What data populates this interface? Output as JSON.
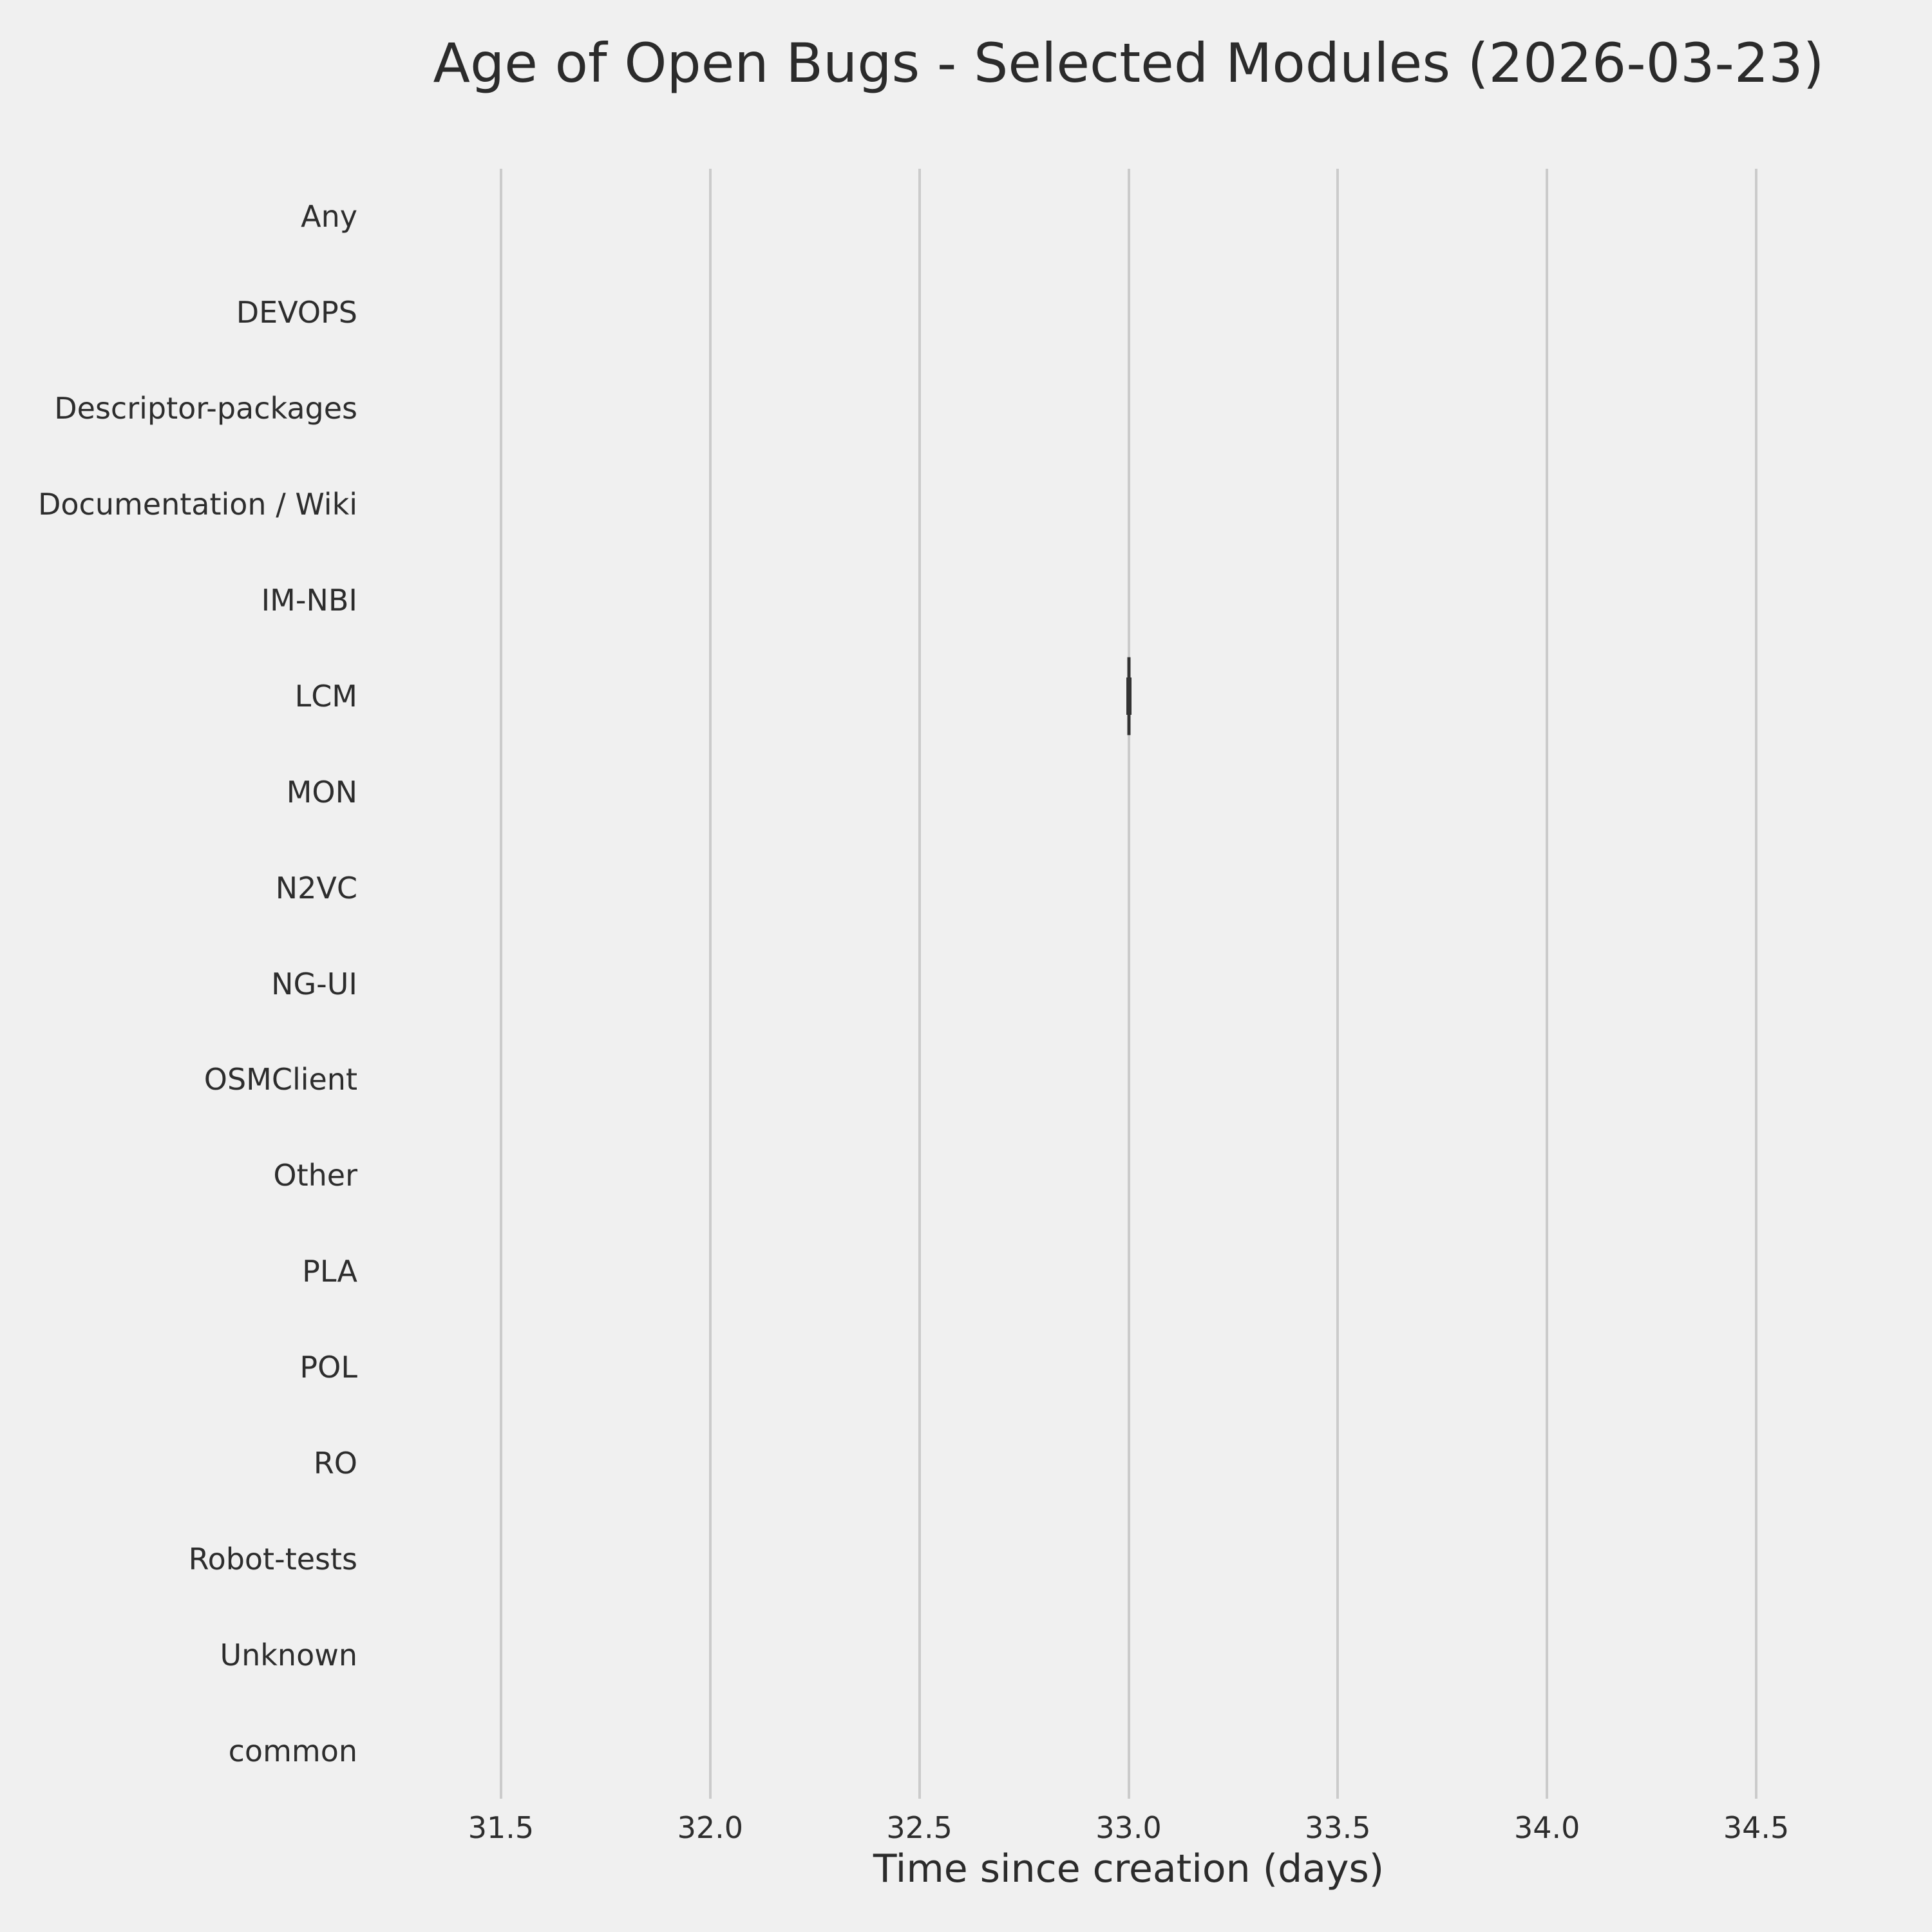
{
  "chart_data": {
    "type": "box",
    "orientation": "horizontal",
    "title": "Age of Open Bugs - Selected Modules (2026-03-23)",
    "xlabel": "Time since creation (days)",
    "categories": [
      "Any",
      "DEVOPS",
      "Descriptor-packages",
      "Documentation / Wiki",
      "IM-NBI",
      "LCM",
      "MON",
      "N2VC",
      "NG-UI",
      "OSMClient",
      "Other",
      "PLA",
      "POL",
      "RO",
      "Robot-tests",
      "Unknown",
      "common"
    ],
    "x_ticks": [
      31.5,
      32.0,
      32.5,
      33.0,
      33.5,
      34.0,
      34.5
    ],
    "x_tick_labels": [
      "31.5",
      "32.0",
      "32.5",
      "33.0",
      "33.5",
      "34.0",
      "34.5"
    ],
    "xlim": [
      31.3,
      34.7
    ],
    "grid": {
      "vertical": true,
      "horizontal": false
    },
    "boxes": [
      {
        "category": "LCM",
        "min": 33.0,
        "q1": 33.0,
        "median": 33.0,
        "q3": 33.0,
        "max": 33.0
      }
    ],
    "colors": {
      "background": "#f0f0f0",
      "gridline": "#cbcbcb",
      "box": "#333333",
      "text": "#2d2d2d"
    }
  }
}
